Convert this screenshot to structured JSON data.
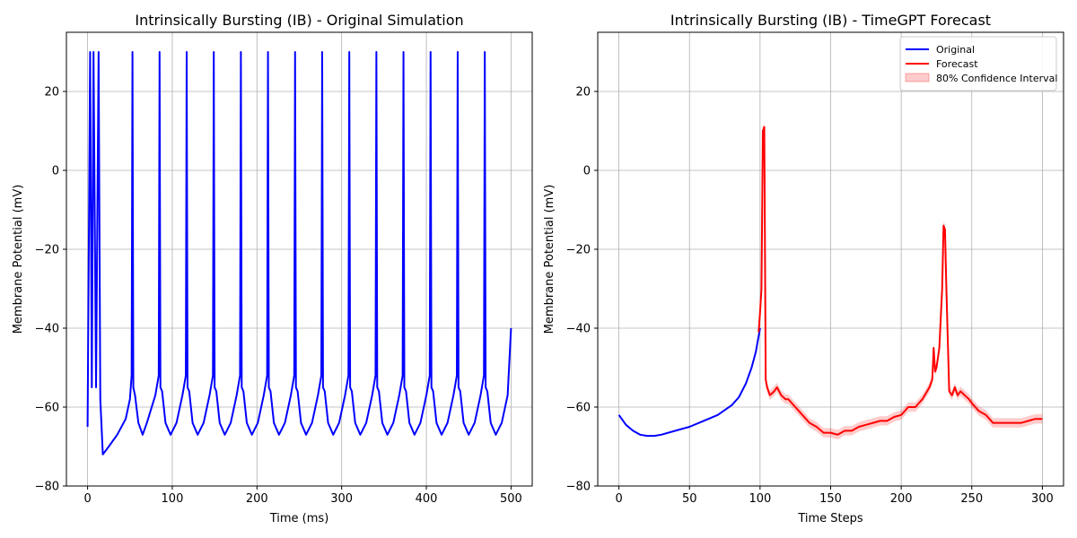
{
  "chart_data": [
    {
      "type": "line",
      "title": "Intrinsically Bursting (IB) - Original Simulation",
      "xlabel": "Time (ms)",
      "ylabel": "Membrane Potential (mV)",
      "xlim": [
        -25,
        525
      ],
      "ylim": [
        -80,
        35
      ],
      "xticks": [
        0,
        100,
        200,
        300,
        400,
        500
      ],
      "yticks": [
        -80,
        -60,
        -40,
        -20,
        0,
        20
      ],
      "grid": true,
      "series": [
        {
          "name": "",
          "color": "#0000ff",
          "spike_times": [
            4,
            6,
            9,
            12,
            53,
            85,
            117,
            149,
            181,
            213,
            245,
            277,
            309,
            341,
            373,
            405,
            437,
            469
          ],
          "x": [
            0,
            3,
            5,
            7,
            10,
            13,
            15,
            18,
            25,
            35,
            45,
            50,
            52,
            53,
            54,
            56,
            60,
            65,
            70,
            80,
            84,
            85,
            86,
            88,
            92,
            98,
            105,
            112,
            116,
            117,
            118,
            120,
            124,
            130,
            137,
            144,
            148,
            149,
            150,
            152,
            156,
            162,
            169,
            176,
            180,
            181,
            182,
            184,
            188,
            194,
            201,
            208,
            212,
            213,
            214,
            216,
            220,
            226,
            233,
            240,
            244,
            245,
            246,
            248,
            252,
            258,
            265,
            272,
            276,
            277,
            278,
            280,
            284,
            290,
            297,
            304,
            308,
            309,
            310,
            312,
            316,
            322,
            329,
            336,
            340,
            341,
            342,
            344,
            348,
            354,
            361,
            368,
            372,
            373,
            374,
            376,
            380,
            386,
            393,
            400,
            404,
            405,
            406,
            408,
            412,
            418,
            425,
            432,
            436,
            437,
            438,
            440,
            444,
            450,
            457,
            464,
            468,
            469,
            470,
            472,
            476,
            482,
            489,
            496,
            500
          ],
          "y": [
            -65,
            30,
            -55,
            30,
            -55,
            30,
            -58,
            -72,
            -70,
            -67,
            -63,
            -58,
            -52,
            30,
            -55,
            -57,
            -64,
            -67,
            -64,
            -57,
            -52,
            30,
            -55,
            -56,
            -64,
            -67,
            -64,
            -57,
            -52,
            30,
            -55,
            -56,
            -64,
            -67,
            -64,
            -57,
            -52,
            30,
            -55,
            -56,
            -64,
            -67,
            -64,
            -57,
            -52,
            30,
            -55,
            -56,
            -64,
            -67,
            -64,
            -57,
            -52,
            30,
            -55,
            -56,
            -64,
            -67,
            -64,
            -57,
            -52,
            30,
            -55,
            -56,
            -64,
            -67,
            -64,
            -57,
            -52,
            30,
            -55,
            -56,
            -64,
            -67,
            -64,
            -57,
            -52,
            30,
            -55,
            -56,
            -64,
            -67,
            -64,
            -57,
            -52,
            30,
            -55,
            -56,
            -64,
            -67,
            -64,
            -57,
            -52,
            30,
            -55,
            -56,
            -64,
            -67,
            -64,
            -57,
            -52,
            30,
            -55,
            -56,
            -64,
            -67,
            -64,
            -57,
            -52,
            30,
            -55,
            -56,
            -64,
            -67,
            -64,
            -57,
            -52,
            30,
            -55,
            -56,
            -64,
            -67,
            -64,
            -57,
            -40
          ]
        }
      ]
    },
    {
      "type": "line",
      "title": "Intrinsically Bursting (IB) - TimeGPT Forecast",
      "xlabel": "Time Steps",
      "ylabel": "Membrane Potential (mV)",
      "xlim": [
        -15,
        315
      ],
      "ylim": [
        -80,
        35
      ],
      "xticks": [
        0,
        50,
        100,
        150,
        200,
        250,
        300
      ],
      "yticks": [
        -80,
        -60,
        -40,
        -20,
        0,
        20
      ],
      "grid": true,
      "legend_position": "top-right",
      "series": [
        {
          "name": "Original",
          "color": "#0000ff",
          "x": [
            0,
            5,
            10,
            15,
            20,
            25,
            30,
            40,
            50,
            60,
            70,
            80,
            85,
            90,
            94,
            97,
            100
          ],
          "y": [
            -62,
            -64.5,
            -66,
            -67,
            -67.3,
            -67.3,
            -67,
            -66,
            -65,
            -63.5,
            -62,
            -59.5,
            -57.5,
            -54,
            -50,
            -46,
            -40
          ]
        },
        {
          "name": "Forecast",
          "color": "#ff0000",
          "x": [
            99,
            100,
            101,
            102,
            103,
            104,
            105,
            107,
            110,
            112,
            115,
            118,
            120,
            125,
            130,
            135,
            140,
            145,
            150,
            155,
            160,
            165,
            170,
            175,
            180,
            185,
            190,
            195,
            200,
            205,
            210,
            215,
            220,
            222,
            223,
            224,
            225,
            227,
            229,
            230,
            231,
            232,
            234,
            236,
            238,
            240,
            242,
            245,
            248,
            250,
            255,
            260,
            265,
            270,
            275,
            280,
            285,
            290,
            295,
            300
          ],
          "y": [
            -41,
            -36,
            -30,
            10,
            11,
            -53,
            -55,
            -57,
            -56,
            -55,
            -57,
            -58,
            -58,
            -60,
            -62,
            -64,
            -65,
            -66.5,
            -66.5,
            -67,
            -66,
            -66,
            -65,
            -64.5,
            -64,
            -63.5,
            -63.5,
            -62.5,
            -62,
            -60,
            -60,
            -58,
            -55,
            -53,
            -45,
            -51,
            -50,
            -45,
            -30,
            -14,
            -15,
            -30,
            -56,
            -57,
            -55,
            -57,
            -56,
            -57,
            -58,
            -59,
            -61,
            -62,
            -64,
            -64,
            -64,
            -64,
            -64,
            -63.5,
            -63,
            -63
          ]
        },
        {
          "name": "80% Confidence Interval",
          "color": "#ff0000",
          "band_halfwidth": 1.2
        }
      ]
    }
  ]
}
